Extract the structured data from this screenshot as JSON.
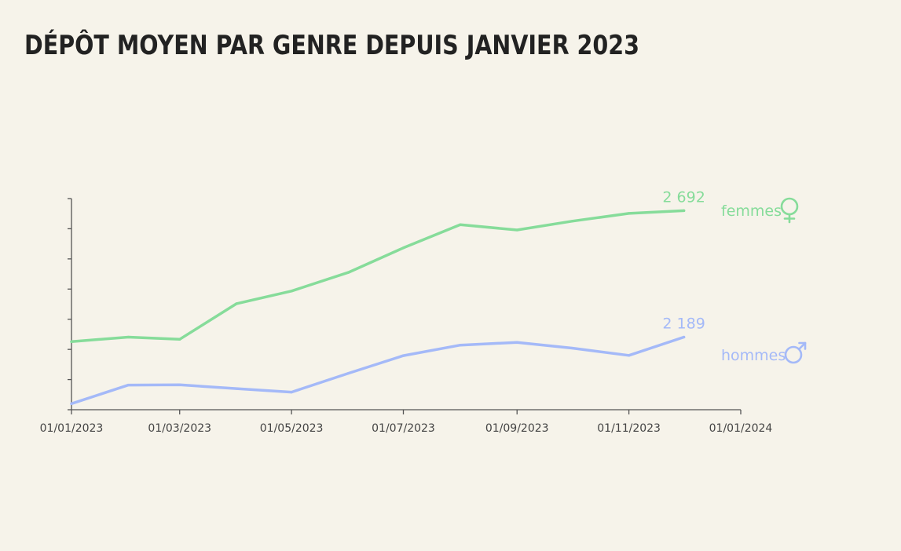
{
  "title": "DÉPÔT MOYEN PAR GENRE DEPUIS JANVIER 2023",
  "colors": {
    "background": "#f6f3ea",
    "femmes": "#86dc9a",
    "hommes": "#a4b9f8",
    "axis": "#555555"
  },
  "chart_data": {
    "type": "line",
    "title": "DÉPÔT MOYEN PAR GENRE DEPUIS JANVIER 2023",
    "xlabel": "",
    "ylabel": "",
    "x_type": "date",
    "xlim": [
      "2023-01-01",
      "2024-01-01"
    ],
    "ylim": [
      1900,
      2740
    ],
    "y_ticks": [
      1900,
      2020,
      2140,
      2260,
      2380,
      2500,
      2620,
      2740
    ],
    "y_tick_labels_shown": false,
    "x_ticks": [
      "2023-01-01",
      "2023-03-01",
      "2023-05-01",
      "2023-07-01",
      "2023-09-01",
      "2023-11-01",
      "2024-01-01"
    ],
    "x_tick_labels": [
      "01/01/2023",
      "01/03/2023",
      "01/05/2023",
      "01/07/2023",
      "01/09/2023",
      "01/11/2023",
      "01/01/2024"
    ],
    "x": [
      "2023-01-01",
      "2023-02-01",
      "2023-03-01",
      "2023-04-01",
      "2023-05-01",
      "2023-06-01",
      "2023-07-01",
      "2023-08-01",
      "2023-09-01",
      "2023-10-01",
      "2023-11-01",
      "2023-12-01"
    ],
    "series": [
      {
        "name": "femmes",
        "color": "#86dc9a",
        "values": [
          2171,
          2189,
          2180,
          2322,
          2372,
          2446,
          2544,
          2636,
          2615,
          2650,
          2681,
          2692
        ],
        "end_label": "2 692",
        "icon": "female-symbol-icon"
      },
      {
        "name": "hommes",
        "color": "#a4b9f8",
        "values": [
          1924,
          1998,
          1999,
          1984,
          1970,
          2045,
          2115,
          2157,
          2168,
          2145,
          2116,
          2189
        ],
        "end_label": "2 189",
        "icon": "male-symbol-icon"
      }
    ],
    "grid": false,
    "legend": "direct labels at line ends (right)"
  }
}
